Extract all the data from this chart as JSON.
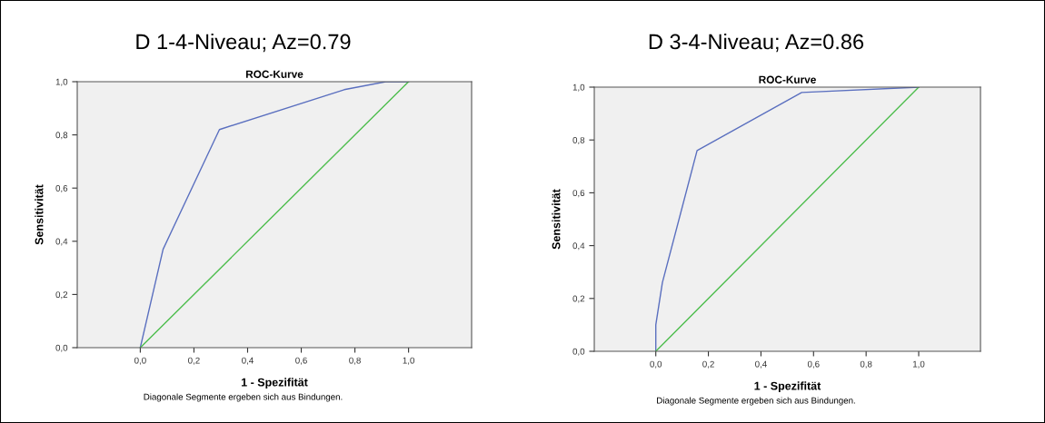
{
  "chart_data": [
    {
      "type": "line",
      "title": "D 1-4-Niveau; Az=0.79",
      "subtitle": "ROC-Kurve",
      "xlabel": "1 - Spezifität",
      "ylabel": "Sensitivität",
      "series": [
        {
          "color": "#5a6fbf",
          "x": [
            0,
            0.085,
            0.295,
            0.76,
            0.915,
            1
          ],
          "values": [
            0,
            0.37,
            0.82,
            0.97,
            1,
            1
          ]
        },
        {
          "color": "#4dbd4d",
          "x": [
            0,
            1
          ],
          "values": [
            0,
            1
          ]
        }
      ],
      "xlim": [
        -0.235,
        1.235
      ],
      "ylim": [
        0,
        1
      ],
      "xticks": [
        {
          "value": 0,
          "label": "0,0"
        },
        {
          "value": 0.2,
          "label": "0,2"
        },
        {
          "value": 0.4,
          "label": "0,4"
        },
        {
          "value": 0.6,
          "label": "0,6"
        },
        {
          "value": 0.8,
          "label": "0,8"
        },
        {
          "value": 1,
          "label": "1,0"
        }
      ],
      "yticks": [
        {
          "value": 0,
          "label": "0,0"
        },
        {
          "value": 0.2,
          "label": "0,2"
        },
        {
          "value": 0.4,
          "label": "0,4"
        },
        {
          "value": 0.6,
          "label": "0,6"
        },
        {
          "value": 0.8,
          "label": "0,8"
        },
        {
          "value": 1,
          "label": "1,0"
        }
      ],
      "grid": false,
      "annotations": [
        "Diagonale Segmente ergeben sich aus Bindungen."
      ]
    },
    {
      "type": "line",
      "title": "D 3-4-Niveau; Az=0.86",
      "subtitle": "ROC-Kurve",
      "xlabel": "1 - Spezifität",
      "ylabel": "Sensitivität",
      "series": [
        {
          "color": "#5a6fbf",
          "x": [
            0,
            0,
            0.025,
            0.157,
            0.555,
            1
          ],
          "values": [
            0,
            0.1,
            0.26,
            0.76,
            0.98,
            1
          ]
        },
        {
          "color": "#4dbd4d",
          "x": [
            0,
            1
          ],
          "values": [
            0,
            1
          ]
        }
      ],
      "xlim": [
        -0.234,
        1.235
      ],
      "ylim": [
        0,
        1
      ],
      "xticks": [
        {
          "value": 0,
          "label": "0,0"
        },
        {
          "value": 0.2,
          "label": "0,2"
        },
        {
          "value": 0.4,
          "label": "0,4"
        },
        {
          "value": 0.6,
          "label": "0,6"
        },
        {
          "value": 0.8,
          "label": "0,8"
        },
        {
          "value": 1,
          "label": "1,0"
        }
      ],
      "yticks": [
        {
          "value": 0,
          "label": "0,0"
        },
        {
          "value": 0.2,
          "label": "0,2"
        },
        {
          "value": 0.4,
          "label": "0,4"
        },
        {
          "value": 0.6,
          "label": "0,6"
        },
        {
          "value": 0.8,
          "label": "0,8"
        },
        {
          "value": 1,
          "label": "1,0"
        }
      ],
      "grid": false,
      "annotations": [
        "Diagonale Segmente ergeben sich aus Bindungen."
      ]
    }
  ]
}
